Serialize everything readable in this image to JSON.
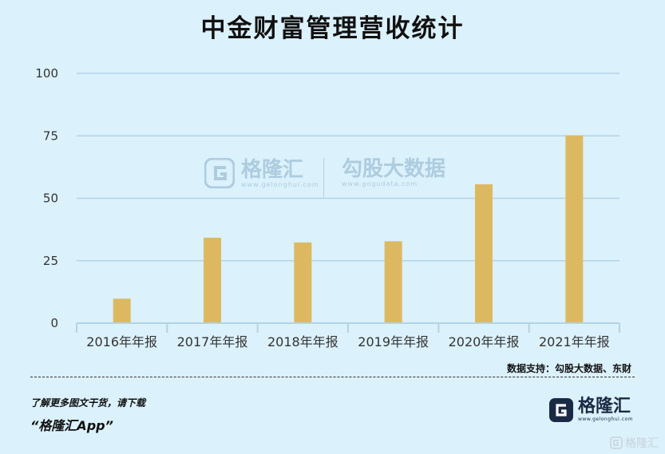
{
  "title": "中金财富管理营收统计",
  "source_note": "数据支持：勾股大数据、东财",
  "footer": {
    "note": "了解更多图文干货，请下载",
    "app": "“格隆汇App”"
  },
  "logo": {
    "name": "格隆汇",
    "url": "www.gelonghui.com"
  },
  "watermark": {
    "left_name": "格隆汇",
    "left_url": "www.gelonghui.com",
    "right_name": "勾股大数据",
    "right_url": "www.gogudata.com"
  },
  "corner_mark": "格隆汇",
  "colors": {
    "bar": "#dcb961",
    "background": "#dbf1fb",
    "grid": "#b3d3e6",
    "brand": "#1b2a44"
  },
  "chart_data": {
    "type": "bar",
    "title": "中金财富管理营收统计",
    "categories": [
      "2016年年报",
      "2017年年报",
      "2018年年报",
      "2019年年报",
      "2020年年报",
      "2021年年报"
    ],
    "values": [
      9.8,
      34.2,
      32.3,
      32.8,
      55.6,
      75.2
    ],
    "ylim": [
      0,
      100
    ],
    "yticks": [
      "0",
      "25",
      "50",
      "75",
      "100"
    ],
    "grid": true,
    "legend": "none"
  }
}
